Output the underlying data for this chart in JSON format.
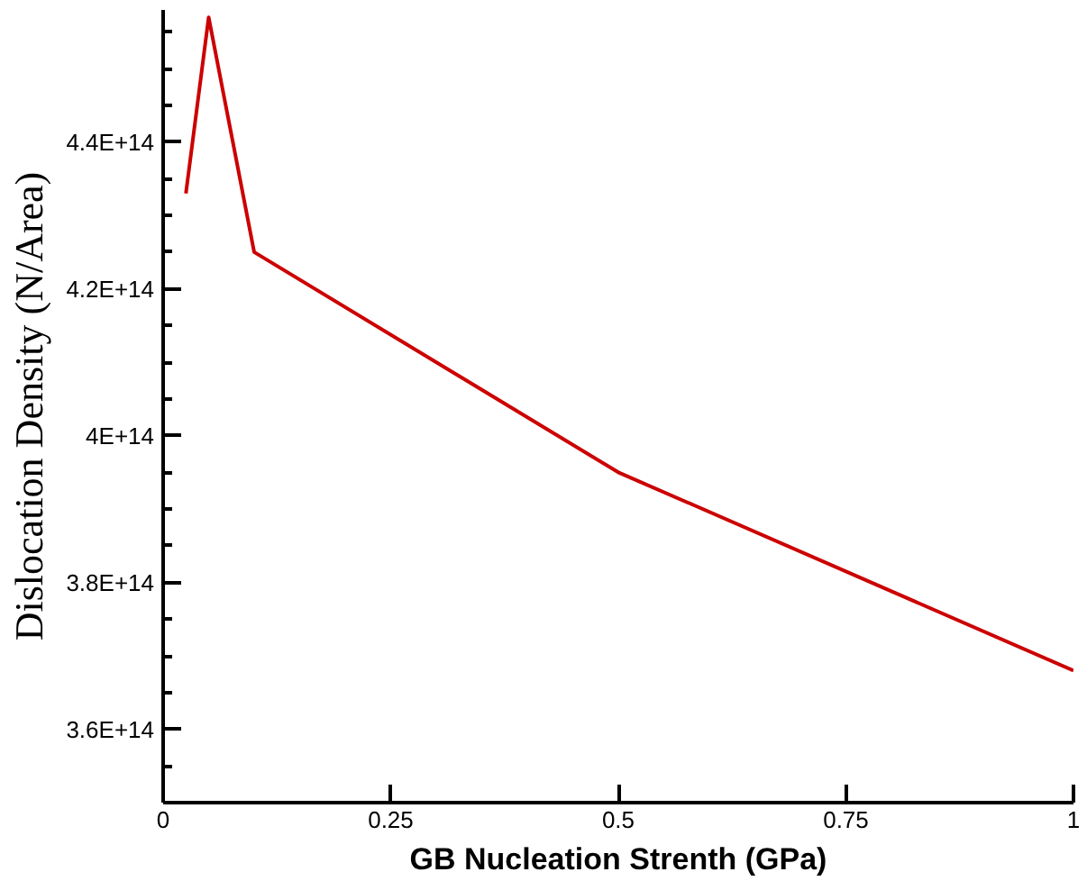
{
  "chart_data": {
    "type": "line",
    "xlabel": "GB Nucleation Strenth (GPa)",
    "ylabel": "Dislocation Density (N/Area)",
    "x": [
      0.025,
      0.05,
      0.1,
      0.5,
      1
    ],
    "series": [
      {
        "color": "#cc0000",
        "values": [
          433000000000000.0,
          457000000000000.0,
          425000000000000.0,
          395000000000000.0,
          368000000000000.0
        ]
      }
    ],
    "xlim": [
      0,
      1
    ],
    "ylim": [
      350000000000000.0,
      458000000000000.0
    ],
    "xticks": [
      0,
      0.25,
      0.5,
      0.75,
      1
    ],
    "yticks": [
      {
        "value": 360000000000000.0,
        "label": "3.6E+14"
      },
      {
        "value": 380000000000000.0,
        "label": "3.8E+14"
      },
      {
        "value": 400000000000000.0,
        "label": "4E+14"
      },
      {
        "value": 420000000000000.0,
        "label": "4.2E+14"
      },
      {
        "value": 440000000000000.0,
        "label": "4.4E+14"
      }
    ],
    "grid": false,
    "marker": "none",
    "line_style": "solid"
  }
}
